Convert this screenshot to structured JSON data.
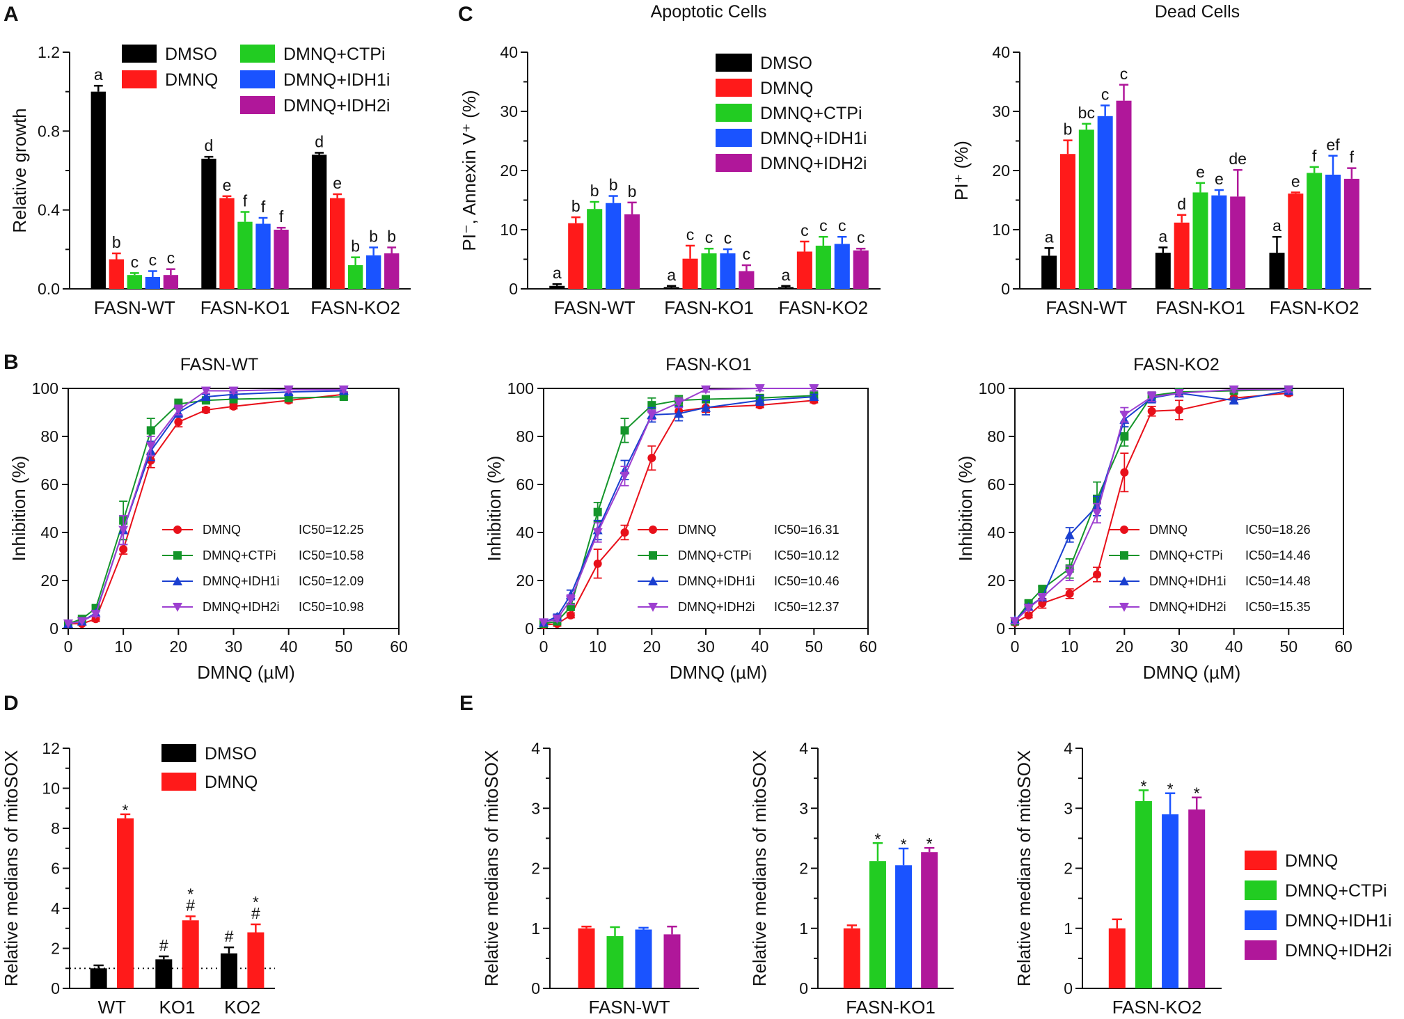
{
  "colors": {
    "DMSO": "#000000",
    "DMNQ": "#ff1a1a",
    "DMNQ+CTPi": "#22cc22",
    "DMNQ+IDH1i": "#1a53ff",
    "DMNQ+IDH2i": "#b0179a",
    "line_DMNQ": "#e8101a",
    "line_CTPi": "#14952a",
    "line_IDH1i": "#1a3fd0",
    "line_IDH2i": "#9d3fd0"
  },
  "chart_data": [
    {
      "id": "A",
      "panel_label": "A",
      "type": "bar",
      "title": "",
      "ylabel": "Relative growth",
      "xlabel": "",
      "ylim": [
        0,
        1.2
      ],
      "yticks": [
        0.0,
        0.4,
        0.8,
        1.2
      ],
      "ytick_labels": [
        "0.0",
        "0.4",
        "0.8",
        "1.2"
      ],
      "minor": 2,
      "legend_cols": 2,
      "categories": [
        "FASN-WT",
        "FASN-KO1",
        "FASN-KO2"
      ],
      "series": [
        {
          "name": "DMSO",
          "values": [
            1.0,
            0.66,
            0.68
          ],
          "errors": [
            0.03,
            0.01,
            0.01
          ],
          "labels": [
            "a",
            "d",
            "d"
          ]
        },
        {
          "name": "DMNQ",
          "values": [
            0.15,
            0.46,
            0.46
          ],
          "errors": [
            0.03,
            0.01,
            0.02
          ],
          "labels": [
            "b",
            "e",
            "e"
          ]
        },
        {
          "name": "DMNQ+CTPi",
          "values": [
            0.07,
            0.34,
            0.12
          ],
          "errors": [
            0.01,
            0.05,
            0.04
          ],
          "labels": [
            "c",
            "f",
            "b"
          ]
        },
        {
          "name": "DMNQ+IDH1i",
          "values": [
            0.06,
            0.33,
            0.17
          ],
          "errors": [
            0.03,
            0.03,
            0.04
          ],
          "labels": [
            "c",
            "f",
            "b"
          ]
        },
        {
          "name": "DMNQ+IDH2i",
          "values": [
            0.07,
            0.3,
            0.18
          ],
          "errors": [
            0.03,
            0.01,
            0.03
          ],
          "labels": [
            "c",
            "f",
            "b"
          ]
        }
      ]
    },
    {
      "id": "C1",
      "panel_label": "C",
      "type": "bar",
      "title": "Apoptotic Cells",
      "ylabel": "PI⁻, Annexin V⁺ (%)",
      "xlabel": "",
      "ylim": [
        0,
        40
      ],
      "yticks": [
        0,
        10,
        20,
        30,
        40
      ],
      "ytick_labels": [
        "0",
        "10",
        "20",
        "30",
        "40"
      ],
      "minor": 2,
      "legend_cols": 1,
      "categories": [
        "FASN-WT",
        "FASN-KO1",
        "FASN-KO2"
      ],
      "series": [
        {
          "name": "DMSO",
          "values": [
            0.5,
            0.3,
            0.3
          ],
          "errors": [
            0.3,
            0.2,
            0.2
          ],
          "labels": [
            "a",
            "a",
            "a"
          ]
        },
        {
          "name": "DMNQ",
          "values": [
            11.1,
            5.1,
            6.3
          ],
          "errors": [
            1.0,
            2.2,
            1.7
          ],
          "labels": [
            "b",
            "c",
            "c"
          ]
        },
        {
          "name": "DMNQ+CTPi",
          "values": [
            13.5,
            6.0,
            7.3
          ],
          "errors": [
            1.2,
            0.8,
            1.5
          ],
          "labels": [
            "b",
            "c",
            "c"
          ]
        },
        {
          "name": "DMNQ+IDH1i",
          "values": [
            14.5,
            6.0,
            7.6
          ],
          "errors": [
            1.2,
            0.7,
            1.2
          ],
          "labels": [
            "b",
            "c",
            "c"
          ]
        },
        {
          "name": "DMNQ+IDH2i",
          "values": [
            12.6,
            3.0,
            6.5
          ],
          "errors": [
            2.0,
            1.0,
            0.3
          ],
          "labels": [
            "b",
            "c",
            "c"
          ]
        }
      ]
    },
    {
      "id": "C2",
      "panel_label": "",
      "type": "bar",
      "title": "Dead Cells",
      "ylabel": "PI⁺ (%)",
      "xlabel": "",
      "ylim": [
        0,
        40
      ],
      "yticks": [
        0,
        10,
        20,
        30,
        40
      ],
      "ytick_labels": [
        "0",
        "10",
        "20",
        "30",
        "40"
      ],
      "minor": 2,
      "categories": [
        "FASN-WT",
        "FASN-KO1",
        "FASN-KO2"
      ],
      "series": [
        {
          "name": "DMSO",
          "values": [
            5.6,
            6.1,
            6.1
          ],
          "errors": [
            1.3,
            0.9,
            2.7
          ],
          "labels": [
            "a",
            "a",
            "a"
          ]
        },
        {
          "name": "DMNQ",
          "values": [
            22.8,
            11.2,
            16.1
          ],
          "errors": [
            2.3,
            1.3,
            0.2
          ],
          "labels": [
            "b",
            "d",
            "e"
          ]
        },
        {
          "name": "DMNQ+CTPi",
          "values": [
            26.9,
            16.3,
            19.6
          ],
          "errors": [
            1.0,
            1.6,
            1.0
          ],
          "labels": [
            "bc",
            "e",
            "f"
          ]
        },
        {
          "name": "DMNQ+IDH1i",
          "values": [
            29.2,
            15.8,
            19.3
          ],
          "errors": [
            1.8,
            0.9,
            3.2
          ],
          "labels": [
            "c",
            "e",
            "ef"
          ]
        },
        {
          "name": "DMNQ+IDH2i",
          "values": [
            31.8,
            15.6,
            18.6
          ],
          "errors": [
            2.7,
            4.5,
            1.8
          ],
          "labels": [
            "c",
            "de",
            "f"
          ]
        }
      ]
    },
    {
      "id": "B1",
      "panel_label": "B",
      "type": "line",
      "title": "FASN-WT",
      "ylabel": "Inhibition (%)",
      "xlabel": "DMNQ (µM)",
      "xlim": [
        0,
        60
      ],
      "ylim": [
        0,
        100
      ],
      "xticks": [
        0,
        10,
        20,
        30,
        40,
        50,
        60
      ],
      "yticks": [
        0,
        20,
        40,
        60,
        80,
        100
      ],
      "x": [
        0,
        2.5,
        5,
        10,
        15,
        20,
        25,
        30,
        40,
        50
      ],
      "series": [
        {
          "name": "DMNQ",
          "ic50": "IC50=12.25",
          "marker": "circle",
          "values": [
            2,
            2,
            4,
            33,
            70,
            86,
            91,
            92.5,
            95,
            97.5
          ],
          "errors": [
            0,
            0,
            1,
            2,
            3,
            2,
            1,
            1,
            1,
            1
          ]
        },
        {
          "name": "DMNQ+CTPi",
          "ic50": "IC50=10.58",
          "marker": "square",
          "values": [
            2,
            4,
            8.5,
            45,
            82.5,
            93.5,
            95,
            95.5,
            96,
            96.5
          ],
          "errors": [
            0,
            0.5,
            1,
            8,
            5,
            2,
            1,
            1,
            1,
            1
          ]
        },
        {
          "name": "DMNQ+IDH1i",
          "ic50": "IC50=12.09",
          "marker": "triangle",
          "values": [
            2,
            3,
            6.5,
            41,
            74,
            90,
            96.5,
            97.5,
            98.5,
            99
          ],
          "errors": [
            0,
            0,
            1,
            6,
            4,
            2,
            1,
            1,
            1,
            1
          ]
        },
        {
          "name": "DMNQ+IDH2i",
          "ic50": "IC50=10.98",
          "marker": "triangle-down",
          "values": [
            2,
            3,
            6,
            41,
            76,
            91,
            99,
            99,
            99.5,
            99.5
          ],
          "errors": [
            0,
            0,
            1,
            6,
            4,
            2,
            1,
            1,
            1,
            1
          ]
        }
      ]
    },
    {
      "id": "B2",
      "panel_label": "",
      "type": "line",
      "title": "FASN-KO1",
      "ylabel": "Inhibition (%)",
      "xlabel": "DMNQ (µM)",
      "xlim": [
        0,
        60
      ],
      "ylim": [
        0,
        100
      ],
      "xticks": [
        0,
        10,
        20,
        30,
        40,
        50,
        60
      ],
      "yticks": [
        0,
        20,
        40,
        60,
        80,
        100
      ],
      "x": [
        0,
        2.5,
        5,
        10,
        15,
        20,
        25,
        30,
        40,
        50
      ],
      "series": [
        {
          "name": "DMNQ",
          "ic50": "IC50=16.31",
          "marker": "circle",
          "values": [
            1.5,
            2,
            5.5,
            27,
            40,
            71,
            90.5,
            92,
            93,
            95
          ],
          "errors": [
            0,
            1,
            1,
            6,
            3,
            5,
            2,
            2,
            1,
            1
          ]
        },
        {
          "name": "DMNQ+CTPi",
          "ic50": "IC50=10.12",
          "marker": "square",
          "values": [
            2,
            3,
            9,
            48.5,
            82.5,
            93,
            95,
            95.5,
            96,
            97
          ],
          "errors": [
            0,
            1,
            1,
            4,
            5,
            3,
            2,
            1,
            1,
            1
          ]
        },
        {
          "name": "DMNQ+IDH1i",
          "ic50": "IC50=10.46",
          "marker": "triangle",
          "values": [
            2.5,
            5,
            14,
            41,
            66,
            89,
            89.5,
            92,
            95,
            96.5
          ],
          "errors": [
            0,
            1,
            2,
            4,
            4,
            3,
            3,
            3,
            2,
            1
          ]
        },
        {
          "name": "DMNQ+IDH2i",
          "ic50": "IC50=12.37",
          "marker": "triangle-down",
          "values": [
            2.5,
            4,
            12,
            40,
            63.5,
            89,
            94,
            99.5,
            100,
            100
          ],
          "errors": [
            0,
            1,
            2,
            4,
            4,
            2,
            2,
            1,
            1,
            1
          ]
        }
      ]
    },
    {
      "id": "B3",
      "panel_label": "",
      "type": "line",
      "title": "FASN-KO2",
      "ylabel": "Inhibition (%)",
      "xlabel": "DMNQ (µM)",
      "xlim": [
        0,
        60
      ],
      "ylim": [
        0,
        100
      ],
      "xticks": [
        0,
        10,
        20,
        30,
        40,
        50,
        60
      ],
      "yticks": [
        0,
        20,
        40,
        60,
        80,
        100
      ],
      "x": [
        0,
        2.5,
        5,
        10,
        15,
        20,
        25,
        30,
        40,
        50
      ],
      "series": [
        {
          "name": "DMNQ",
          "ic50": "IC50=18.26",
          "marker": "circle",
          "values": [
            2.5,
            5.5,
            10.5,
            14.5,
            22.5,
            65,
            90.5,
            91,
            96,
            98
          ],
          "errors": [
            1,
            1,
            2,
            2,
            3,
            8,
            2,
            4,
            2,
            1
          ]
        },
        {
          "name": "DMNQ+CTPi",
          "ic50": "IC50=14.46",
          "marker": "square",
          "values": [
            3,
            10.5,
            16.5,
            25,
            54,
            80,
            97,
            98.5,
            99,
            99.5
          ],
          "errors": [
            1,
            1,
            1,
            4,
            7,
            4,
            1,
            1,
            1,
            1
          ]
        },
        {
          "name": "DMNQ+IDH1i",
          "ic50": "IC50=14.48",
          "marker": "triangle",
          "values": [
            3.5,
            9,
            13,
            39,
            51,
            87,
            96,
            98,
            95,
            99
          ],
          "errors": [
            1,
            1,
            1,
            3,
            4,
            3,
            2,
            1,
            1,
            1
          ]
        },
        {
          "name": "DMNQ+IDH2i",
          "ic50": "IC50=15.35",
          "marker": "triangle-down",
          "values": [
            3,
            8.5,
            13,
            23,
            48,
            89,
            96.5,
            98,
            99.5,
            99.5
          ],
          "errors": [
            1,
            1,
            1,
            3,
            4,
            3,
            2,
            1,
            1,
            1
          ]
        }
      ]
    },
    {
      "id": "D",
      "panel_label": "D",
      "type": "bar",
      "title": "",
      "ylabel": "Relative medians of mitoSOX",
      "xlabel": "",
      "ylim": [
        0,
        12
      ],
      "yticks": [
        0,
        2,
        4,
        6,
        8,
        10,
        12
      ],
      "ytick_labels": [
        "0",
        "2",
        "4",
        "6",
        "8",
        "10",
        "12"
      ],
      "minor": 2,
      "legend_cols": 1,
      "reference_line": 1,
      "categories": [
        "WT",
        "KO1",
        "KO2"
      ],
      "series": [
        {
          "name": "DMSO",
          "values": [
            1.0,
            1.45,
            1.75
          ],
          "errors": [
            0.15,
            0.15,
            0.3
          ],
          "labels": [
            "",
            "#",
            "#"
          ]
        },
        {
          "name": "DMNQ",
          "values": [
            8.5,
            3.4,
            2.8
          ],
          "errors": [
            0.2,
            0.2,
            0.4
          ],
          "labels": [
            "*",
            "*\n#",
            "*\n#"
          ]
        }
      ]
    },
    {
      "id": "E1",
      "panel_label": "E",
      "type": "bar",
      "title": "",
      "ylabel": "Relative medians of mitoSOX",
      "xlabel": "",
      "ylim": [
        0,
        4
      ],
      "yticks": [
        0,
        1,
        2,
        3,
        4
      ],
      "ytick_labels": [
        "0",
        "1",
        "2",
        "3",
        "4"
      ],
      "minor": 2,
      "categories": [
        "FASN-WT"
      ],
      "series": [
        {
          "name": "DMNQ",
          "values": [
            1.0
          ],
          "errors": [
            0.03
          ],
          "labels": [
            ""
          ]
        },
        {
          "name": "DMNQ+CTPi",
          "values": [
            0.87
          ],
          "errors": [
            0.15
          ],
          "labels": [
            ""
          ]
        },
        {
          "name": "DMNQ+IDH1i",
          "values": [
            0.98
          ],
          "errors": [
            0.03
          ],
          "labels": [
            ""
          ]
        },
        {
          "name": "DMNQ+IDH2i",
          "values": [
            0.9
          ],
          "errors": [
            0.13
          ],
          "labels": [
            ""
          ]
        }
      ]
    },
    {
      "id": "E2",
      "panel_label": "",
      "type": "bar",
      "title": "",
      "ylabel": "Relative medians of mitoSOX",
      "xlabel": "",
      "ylim": [
        0,
        4
      ],
      "yticks": [
        0,
        1,
        2,
        3,
        4
      ],
      "ytick_labels": [
        "0",
        "1",
        "2",
        "3",
        "4"
      ],
      "minor": 2,
      "categories": [
        "FASN-KO1"
      ],
      "series": [
        {
          "name": "DMNQ",
          "values": [
            1.0
          ],
          "errors": [
            0.05
          ],
          "labels": [
            ""
          ]
        },
        {
          "name": "DMNQ+CTPi",
          "values": [
            2.12
          ],
          "errors": [
            0.3
          ],
          "labels": [
            "*"
          ]
        },
        {
          "name": "DMNQ+IDH1i",
          "values": [
            2.05
          ],
          "errors": [
            0.28
          ],
          "labels": [
            "*"
          ]
        },
        {
          "name": "DMNQ+IDH2i",
          "values": [
            2.27
          ],
          "errors": [
            0.07
          ],
          "labels": [
            "*"
          ]
        }
      ]
    },
    {
      "id": "E3",
      "panel_label": "",
      "type": "bar",
      "title": "",
      "ylabel": "Relative medians of mitoSOX",
      "xlabel": "",
      "ylim": [
        0,
        4
      ],
      "yticks": [
        0,
        1,
        2,
        3,
        4
      ],
      "ytick_labels": [
        "0",
        "1",
        "2",
        "3",
        "4"
      ],
      "minor": 2,
      "legend_cols": 1,
      "categories": [
        "FASN-KO2"
      ],
      "series": [
        {
          "name": "DMNQ",
          "values": [
            1.0
          ],
          "errors": [
            0.15
          ],
          "labels": [
            ""
          ]
        },
        {
          "name": "DMNQ+CTPi",
          "values": [
            3.12
          ],
          "errors": [
            0.18
          ],
          "labels": [
            "*"
          ]
        },
        {
          "name": "DMNQ+IDH1i",
          "values": [
            2.9
          ],
          "errors": [
            0.35
          ],
          "labels": [
            "*"
          ]
        },
        {
          "name": "DMNQ+IDH2i",
          "values": [
            2.98
          ],
          "errors": [
            0.2
          ],
          "labels": [
            "*"
          ]
        }
      ]
    }
  ]
}
